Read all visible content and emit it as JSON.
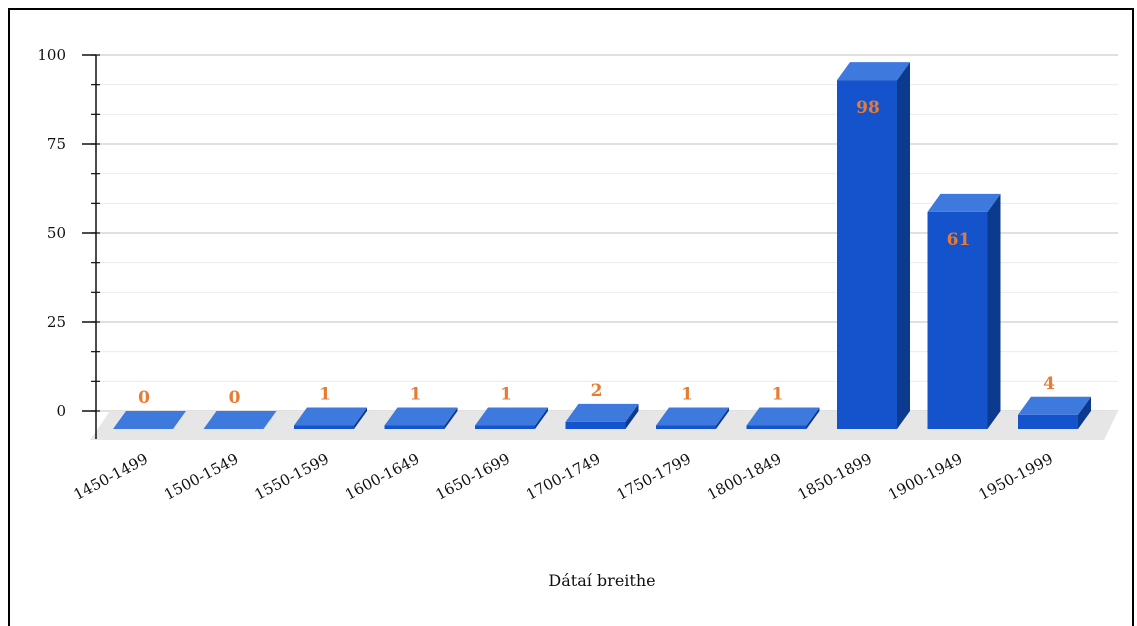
{
  "chart_data": {
    "type": "bar",
    "categories": [
      "1450-1499",
      "1500-1549",
      "1550-1599",
      "1600-1649",
      "1650-1699",
      "1700-1749",
      "1750-1799",
      "1800-1849",
      "1850-1899",
      "1900-1949",
      "1950-1999"
    ],
    "values": [
      0,
      0,
      1,
      1,
      1,
      2,
      1,
      1,
      98,
      61,
      4
    ],
    "xlabel": "Dátaí breithe",
    "ylabel": "",
    "ylim": [
      0,
      100
    ],
    "yticks": [
      0,
      25,
      50,
      75,
      100
    ],
    "grid": true,
    "three_d": true,
    "colors": {
      "bar_front": "#1553cc",
      "bar_top": "#3e79dd",
      "bar_side": "#0b3a8e",
      "data_label": "#e87a32",
      "grid": "#d6d6d6",
      "floor": "#e6e6e6"
    }
  }
}
